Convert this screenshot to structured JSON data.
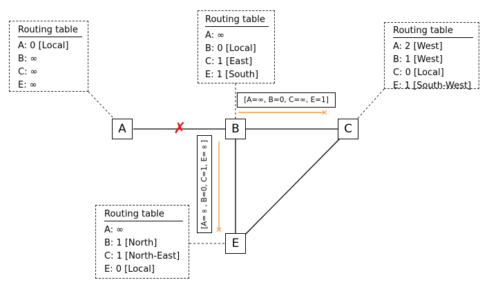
{
  "colors": {
    "broken_link": "#ee1111",
    "message_arrow": "#f39a3a",
    "line": "#000000"
  },
  "nodes": {
    "A": "A",
    "B": "B",
    "C": "C",
    "E": "E"
  },
  "tables": {
    "A": {
      "title": "Routing table",
      "entries": [
        "A: 0 [Local]",
        "B: ∞",
        "C: ∞",
        "E: ∞"
      ]
    },
    "B": {
      "title": "Routing table",
      "entries": [
        "A: ∞",
        "B: 0 [Local]",
        "C: 1 [East]",
        "E: 1 [South]"
      ]
    },
    "C": {
      "title": "Routing table",
      "entries": [
        "A: 2 [West]",
        "B: 1 [West]",
        "C: 0 [Local]",
        "E: 1 [South-West]"
      ]
    },
    "E": {
      "title": "Routing table",
      "entries": [
        "A: ∞",
        "B: 1 [North]",
        "C: 1 [North-East]",
        "E: 0 [Local]"
      ]
    }
  },
  "messages": {
    "to_C": "[A=∞, B=0, C=∞, E=1]",
    "to_E": "[A=∞, B=0, C=1, E=∞]"
  },
  "broken_link_mark": "✗",
  "icons": {
    "broken_link": "cross-icon",
    "message_arrow": "arrow-icon"
  }
}
